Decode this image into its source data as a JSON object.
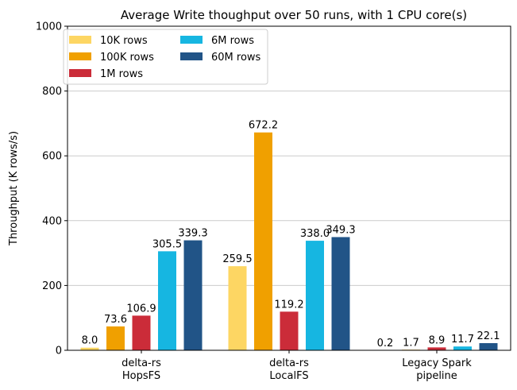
{
  "chart_data": {
    "type": "bar",
    "title": "Average Write thoughput over 50 runs, with 1 CPU core(s)",
    "xlabel": "",
    "ylabel": "Throughput (K rows/s)",
    "ylim": [
      0,
      1000
    ],
    "yticks": [
      0,
      200,
      400,
      600,
      800,
      1000
    ],
    "grid": "horizontal",
    "legend_placement": "top-left",
    "categories": [
      [
        "delta-rs",
        "HopsFS"
      ],
      [
        "delta-rs",
        "LocalFS"
      ],
      [
        "Legacy Spark",
        "pipeline"
      ]
    ],
    "series": [
      {
        "name": "10K rows",
        "color": "#FDD663",
        "values": [
          8.0,
          259.5,
          0.2
        ],
        "labels": [
          "8.0",
          "259.5",
          "0.2"
        ]
      },
      {
        "name": "100K rows",
        "color": "#F0A000",
        "values": [
          73.6,
          672.2,
          1.7
        ],
        "labels": [
          "73.6",
          "672.2",
          "1.7"
        ]
      },
      {
        "name": "1M rows",
        "color": "#CB2C39",
        "values": [
          106.9,
          119.2,
          8.9
        ],
        "labels": [
          "106.9",
          "119.2",
          "8.9"
        ]
      },
      {
        "name": "6M rows",
        "color": "#16B6E1",
        "values": [
          305.5,
          338.0,
          11.7
        ],
        "labels": [
          "305.5",
          "338.0",
          "11.7"
        ]
      },
      {
        "name": "60M rows",
        "color": "#215487",
        "values": [
          339.3,
          349.3,
          22.1
        ],
        "labels": [
          "339.3",
          "349.3",
          "22.1"
        ]
      }
    ]
  }
}
